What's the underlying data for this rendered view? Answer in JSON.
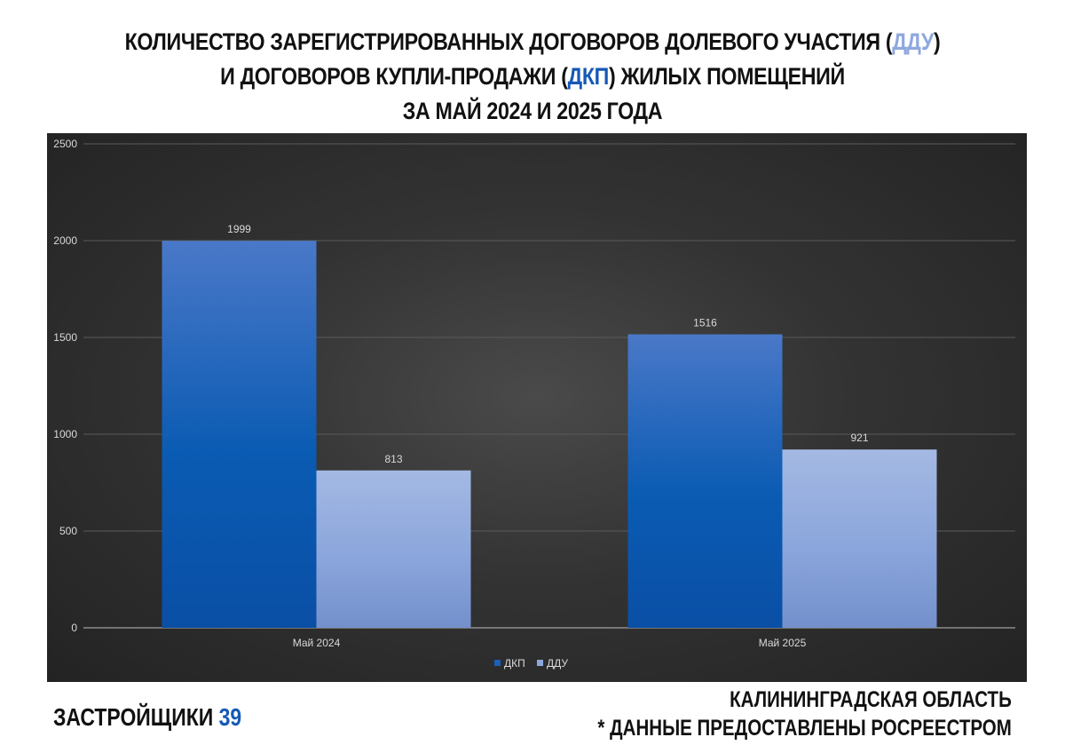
{
  "header": {
    "line1_pre": "КОЛИЧЕСТВО ЗАРЕГИСТРИРОВАННЫХ ДОГОВОРОВ ДОЛЕВОГО УЧАСТИЯ (",
    "line1_hl": "ДДУ",
    "line1_post": ")",
    "line2_pre": "И ДОГОВОРОВ КУПЛИ-ПРОДАЖИ (",
    "line2_hl": "ДКП",
    "line2_post": ") ЖИЛЫХ ПОМЕЩЕНИЙ",
    "line3": "ЗА МАЙ 2024 И 2025 ГОДА"
  },
  "chart_data": {
    "type": "bar",
    "categories": [
      "Май 2024",
      "Май 2025"
    ],
    "series": [
      {
        "name": "ДКП",
        "values": [
          1999,
          1516
        ],
        "color": "#1a5fb8"
      },
      {
        "name": "ДДУ",
        "values": [
          813,
          921
        ],
        "color": "#8ea8dd"
      }
    ],
    "ylim": [
      0,
      2500
    ],
    "yticks": [
      "0",
      "500",
      "1000",
      "1500",
      "2000",
      "2500"
    ],
    "grid": true,
    "legend_position": "bottom",
    "data_labels": true
  },
  "footer": {
    "brand_name": "ЗАСТРОЙЩИКИ",
    "brand_number": "39",
    "region": "КАЛИНИНГРАДСКАЯ ОБЛАСТЬ",
    "source_note": "* ДАННЫЕ ПРЕДОСТАВЛЕНЫ РОСРЕЕСТРОМ"
  }
}
